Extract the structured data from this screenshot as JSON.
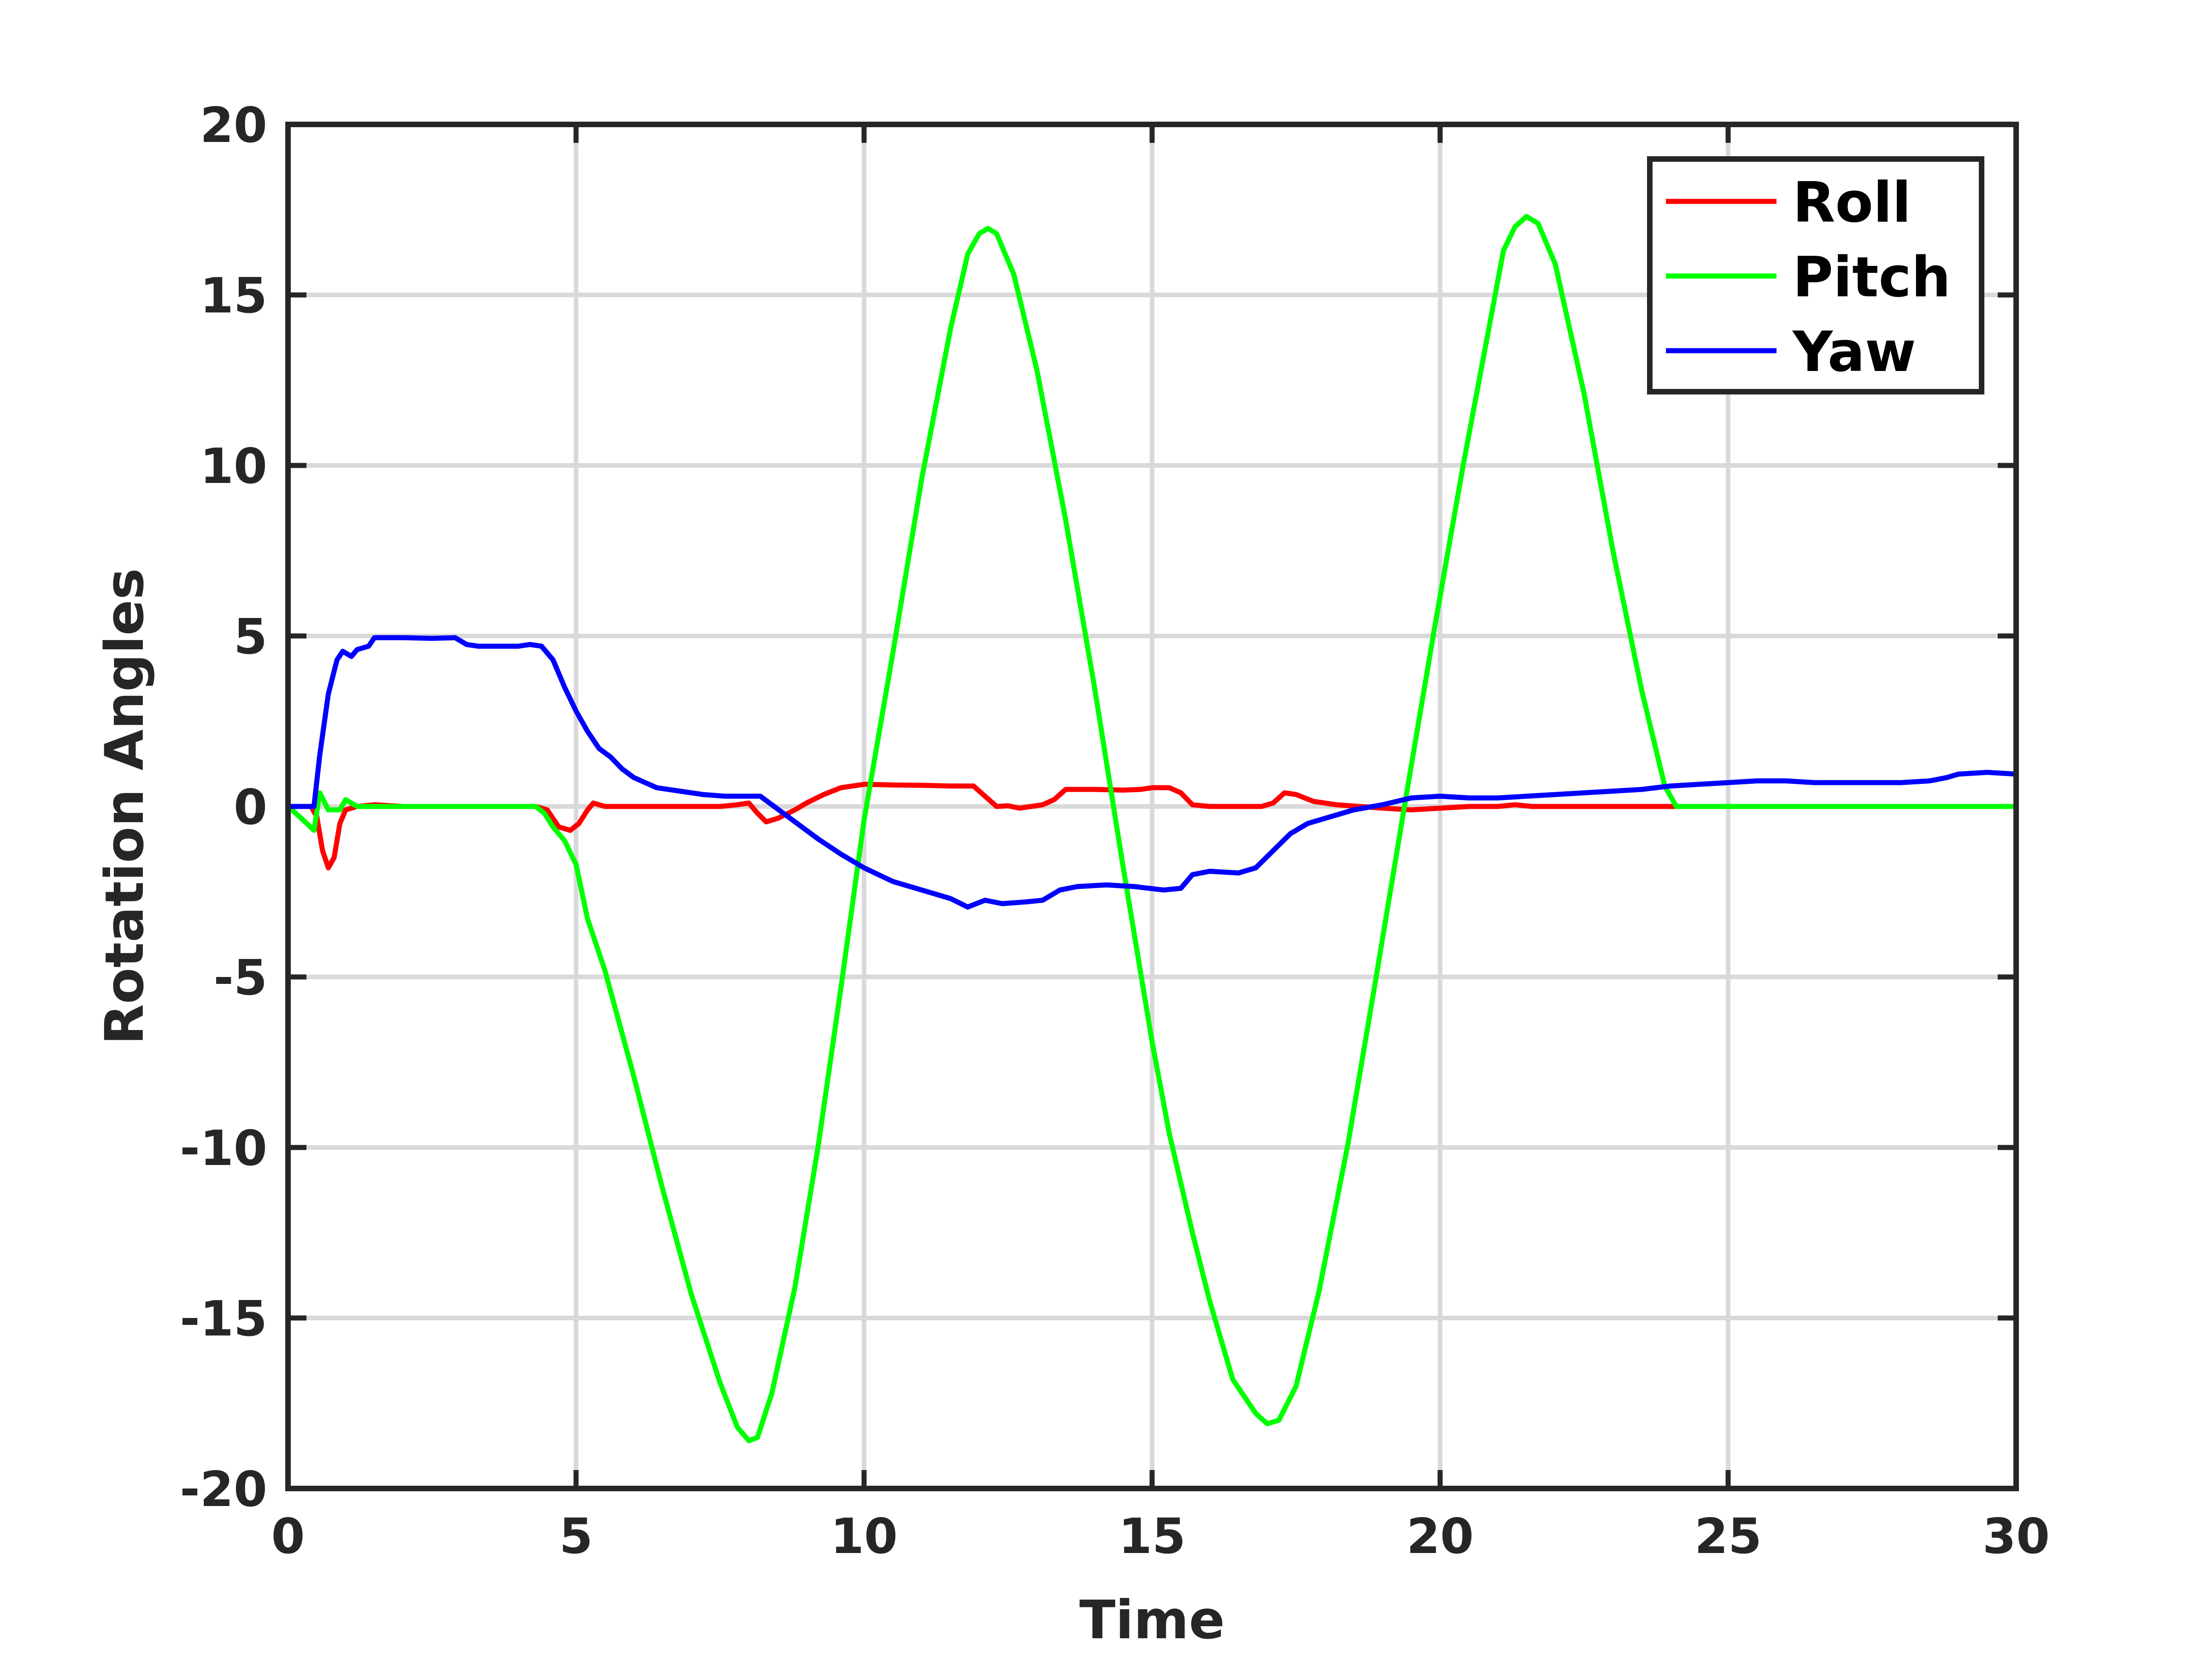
{
  "chart_data": {
    "type": "line",
    "title": "",
    "xlabel": "Time",
    "ylabel": "Rotation Angles",
    "xlim": [
      0,
      30
    ],
    "ylim": [
      -20,
      20
    ],
    "xticks": [
      0,
      5,
      10,
      15,
      20,
      25,
      30
    ],
    "yticks": [
      20,
      15,
      10,
      5,
      0,
      -5,
      -10,
      -15,
      -20
    ],
    "grid": true,
    "legend_position": "top-right",
    "series": [
      {
        "name": "Roll",
        "color": "#ff0000",
        "points": [
          [
            0,
            0
          ],
          [
            0.4,
            0
          ],
          [
            0.5,
            -0.3
          ],
          [
            0.6,
            -1.3
          ],
          [
            0.7,
            -1.8
          ],
          [
            0.8,
            -1.5
          ],
          [
            0.9,
            -0.5
          ],
          [
            1.0,
            -0.1
          ],
          [
            1.2,
            0
          ],
          [
            1.5,
            0.05
          ],
          [
            2,
            0
          ],
          [
            2.5,
            0
          ],
          [
            3,
            0
          ],
          [
            3.5,
            0
          ],
          [
            4,
            0
          ],
          [
            4.3,
            0
          ],
          [
            4.5,
            -0.1
          ],
          [
            4.7,
            -0.6
          ],
          [
            4.9,
            -0.7
          ],
          [
            5.05,
            -0.5
          ],
          [
            5.2,
            -0.1
          ],
          [
            5.3,
            0.1
          ],
          [
            5.5,
            0
          ],
          [
            6,
            0
          ],
          [
            6.5,
            0
          ],
          [
            7,
            0
          ],
          [
            7.5,
            0
          ],
          [
            7.8,
            0.05
          ],
          [
            8.0,
            0.1
          ],
          [
            8.15,
            -0.2
          ],
          [
            8.3,
            -0.45
          ],
          [
            8.5,
            -0.35
          ],
          [
            8.8,
            -0.1
          ],
          [
            9.0,
            0.1
          ],
          [
            9.3,
            0.35
          ],
          [
            9.6,
            0.55
          ],
          [
            10.0,
            0.65
          ],
          [
            10.5,
            0.63
          ],
          [
            11,
            0.62
          ],
          [
            11.5,
            0.6
          ],
          [
            11.9,
            0.6
          ],
          [
            12.1,
            0.3
          ],
          [
            12.3,
            0
          ],
          [
            12.5,
            0.02
          ],
          [
            12.7,
            -0.05
          ],
          [
            12.9,
            0
          ],
          [
            13.1,
            0.05
          ],
          [
            13.3,
            0.2
          ],
          [
            13.5,
            0.5
          ],
          [
            14,
            0.5
          ],
          [
            14.5,
            0.48
          ],
          [
            14.8,
            0.5
          ],
          [
            15.0,
            0.55
          ],
          [
            15.3,
            0.55
          ],
          [
            15.5,
            0.4
          ],
          [
            15.7,
            0.05
          ],
          [
            16,
            0
          ],
          [
            16.5,
            0
          ],
          [
            16.9,
            0
          ],
          [
            17.1,
            0.1
          ],
          [
            17.3,
            0.4
          ],
          [
            17.5,
            0.35
          ],
          [
            17.8,
            0.15
          ],
          [
            18.2,
            0.05
          ],
          [
            18.6,
            0
          ],
          [
            19,
            -0.05
          ],
          [
            19.5,
            -0.1
          ],
          [
            20,
            -0.05
          ],
          [
            20.5,
            0
          ],
          [
            21,
            0
          ],
          [
            21.3,
            0.05
          ],
          [
            21.6,
            0
          ],
          [
            22,
            0
          ],
          [
            22.5,
            0
          ],
          [
            23,
            0
          ],
          [
            23.5,
            0
          ],
          [
            24,
            0
          ],
          [
            24.5,
            0
          ],
          [
            25,
            0
          ],
          [
            26,
            0
          ],
          [
            27,
            0
          ],
          [
            28,
            0
          ],
          [
            29,
            0
          ],
          [
            30,
            0
          ]
        ]
      },
      {
        "name": "Pitch",
        "color": "#00ff00",
        "points": [
          [
            0,
            0
          ],
          [
            0.2,
            -0.3
          ],
          [
            0.45,
            -0.7
          ],
          [
            0.55,
            0.4
          ],
          [
            0.7,
            -0.1
          ],
          [
            0.9,
            -0.1
          ],
          [
            1.0,
            0.2
          ],
          [
            1.2,
            0
          ],
          [
            1.5,
            0
          ],
          [
            2,
            0
          ],
          [
            2.5,
            0
          ],
          [
            3,
            0
          ],
          [
            3.5,
            0
          ],
          [
            4,
            0
          ],
          [
            4.3,
            0
          ],
          [
            4.45,
            -0.2
          ],
          [
            4.6,
            -0.6
          ],
          [
            4.8,
            -1.0
          ],
          [
            5.0,
            -1.7
          ],
          [
            5.2,
            -3.3
          ],
          [
            5.5,
            -4.8
          ],
          [
            6,
            -7.9
          ],
          [
            6.5,
            -11.2
          ],
          [
            7.0,
            -14.3
          ],
          [
            7.5,
            -16.9
          ],
          [
            7.8,
            -18.2
          ],
          [
            8.0,
            -18.6
          ],
          [
            8.15,
            -18.5
          ],
          [
            8.4,
            -17.2
          ],
          [
            8.8,
            -14.1
          ],
          [
            9.2,
            -10.0
          ],
          [
            9.6,
            -5.3
          ],
          [
            10.0,
            -0.4
          ],
          [
            10.5,
            4.5
          ],
          [
            11.0,
            9.6
          ],
          [
            11.5,
            14.0
          ],
          [
            11.8,
            16.2
          ],
          [
            12.0,
            16.8
          ],
          [
            12.15,
            16.95
          ],
          [
            12.3,
            16.8
          ],
          [
            12.6,
            15.6
          ],
          [
            13.0,
            12.8
          ],
          [
            13.5,
            8.4
          ],
          [
            14.0,
            3.5
          ],
          [
            14.5,
            -1.8
          ],
          [
            15.0,
            -6.9
          ],
          [
            15.3,
            -9.6
          ],
          [
            15.7,
            -12.5
          ],
          [
            16.0,
            -14.5
          ],
          [
            16.4,
            -16.8
          ],
          [
            16.8,
            -17.8
          ],
          [
            17.0,
            -18.1
          ],
          [
            17.2,
            -18.0
          ],
          [
            17.5,
            -17.0
          ],
          [
            17.9,
            -14.2
          ],
          [
            18.4,
            -9.9
          ],
          [
            18.9,
            -4.9
          ],
          [
            19.4,
            0.2
          ],
          [
            19.9,
            5.2
          ],
          [
            20.4,
            10.0
          ],
          [
            20.8,
            13.6
          ],
          [
            21.1,
            16.3
          ],
          [
            21.3,
            17.0
          ],
          [
            21.5,
            17.3
          ],
          [
            21.7,
            17.1
          ],
          [
            22.0,
            15.9
          ],
          [
            22.5,
            12.1
          ],
          [
            23.0,
            7.5
          ],
          [
            23.5,
            3.4
          ],
          [
            23.9,
            0.6
          ],
          [
            24.1,
            0
          ],
          [
            24.5,
            0
          ],
          [
            25,
            0
          ],
          [
            26,
            0
          ],
          [
            27,
            0
          ],
          [
            28,
            0
          ],
          [
            29,
            0
          ],
          [
            30,
            0
          ]
        ]
      },
      {
        "name": "Yaw",
        "color": "#0000ff",
        "points": [
          [
            0,
            0
          ],
          [
            0.45,
            0
          ],
          [
            0.55,
            1.5
          ],
          [
            0.7,
            3.3
          ],
          [
            0.85,
            4.3
          ],
          [
            0.95,
            4.55
          ],
          [
            1.1,
            4.4
          ],
          [
            1.2,
            4.6
          ],
          [
            1.4,
            4.7
          ],
          [
            1.5,
            4.95
          ],
          [
            2.0,
            4.95
          ],
          [
            2.5,
            4.93
          ],
          [
            2.9,
            4.95
          ],
          [
            3.1,
            4.75
          ],
          [
            3.3,
            4.7
          ],
          [
            3.6,
            4.7
          ],
          [
            4.0,
            4.7
          ],
          [
            4.2,
            4.75
          ],
          [
            4.4,
            4.7
          ],
          [
            4.6,
            4.3
          ],
          [
            4.8,
            3.5
          ],
          [
            5.0,
            2.8
          ],
          [
            5.2,
            2.2
          ],
          [
            5.4,
            1.7
          ],
          [
            5.6,
            1.45
          ],
          [
            5.8,
            1.1
          ],
          [
            6.0,
            0.85
          ],
          [
            6.4,
            0.55
          ],
          [
            6.8,
            0.45
          ],
          [
            7.2,
            0.35
          ],
          [
            7.6,
            0.3
          ],
          [
            8.0,
            0.3
          ],
          [
            8.2,
            0.3
          ],
          [
            8.4,
            0.05
          ],
          [
            8.8,
            -0.45
          ],
          [
            9.2,
            -0.95
          ],
          [
            9.6,
            -1.4
          ],
          [
            10.0,
            -1.8
          ],
          [
            10.5,
            -2.2
          ],
          [
            11.0,
            -2.45
          ],
          [
            11.5,
            -2.7
          ],
          [
            11.8,
            -2.95
          ],
          [
            12.1,
            -2.75
          ],
          [
            12.4,
            -2.85
          ],
          [
            12.8,
            -2.8
          ],
          [
            13.1,
            -2.75
          ],
          [
            13.4,
            -2.45
          ],
          [
            13.7,
            -2.35
          ],
          [
            14.2,
            -2.3
          ],
          [
            14.7,
            -2.35
          ],
          [
            15.2,
            -2.45
          ],
          [
            15.5,
            -2.4
          ],
          [
            15.7,
            -2.0
          ],
          [
            16.0,
            -1.9
          ],
          [
            16.5,
            -1.95
          ],
          [
            16.8,
            -1.8
          ],
          [
            17.1,
            -1.3
          ],
          [
            17.4,
            -0.8
          ],
          [
            17.7,
            -0.5
          ],
          [
            18.0,
            -0.35
          ],
          [
            18.5,
            -0.1
          ],
          [
            19.0,
            0.05
          ],
          [
            19.5,
            0.25
          ],
          [
            20.0,
            0.3
          ],
          [
            20.5,
            0.25
          ],
          [
            21.0,
            0.25
          ],
          [
            21.5,
            0.3
          ],
          [
            22.0,
            0.35
          ],
          [
            22.5,
            0.4
          ],
          [
            23.0,
            0.45
          ],
          [
            23.5,
            0.5
          ],
          [
            24.0,
            0.6
          ],
          [
            24.5,
            0.65
          ],
          [
            25.0,
            0.7
          ],
          [
            25.5,
            0.75
          ],
          [
            26.0,
            0.75
          ],
          [
            26.5,
            0.7
          ],
          [
            27.0,
            0.7
          ],
          [
            27.5,
            0.7
          ],
          [
            28.0,
            0.7
          ],
          [
            28.5,
            0.75
          ],
          [
            28.8,
            0.85
          ],
          [
            29.0,
            0.95
          ],
          [
            29.5,
            1.0
          ],
          [
            30.0,
            0.95
          ]
        ]
      }
    ]
  }
}
